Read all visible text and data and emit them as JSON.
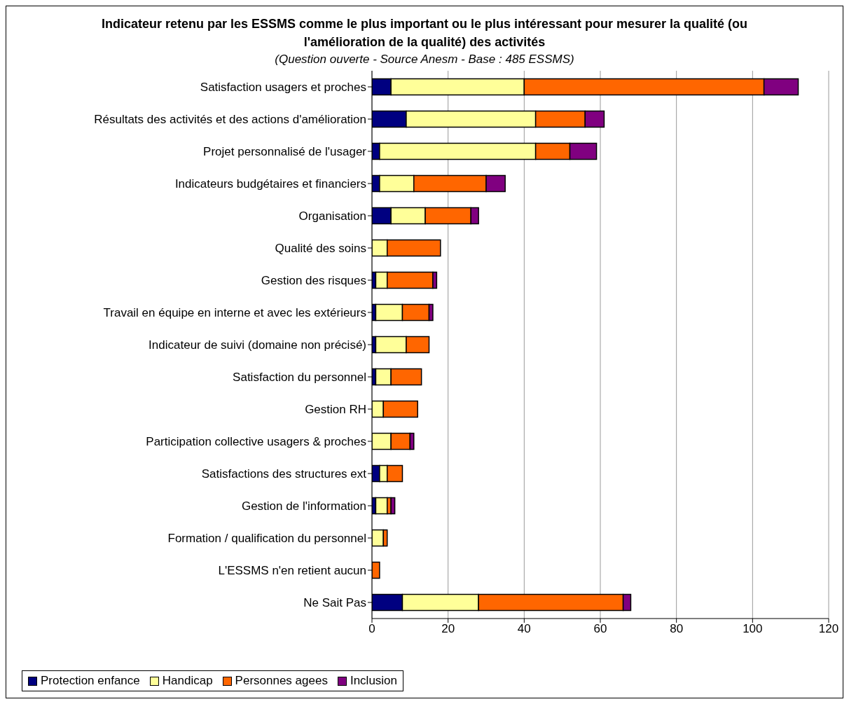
{
  "chart_data": {
    "type": "bar",
    "orientation": "horizontal",
    "stacked": true,
    "title": "Indicateur retenu par les ESSMS comme le plus important ou le plus intéressant pour mesurer la qualité (ou l'amélioration de la qualité) des activités",
    "subtitle": "(Question ouverte - Source Anesm - Base : 485 ESSMS)",
    "categories": [
      "Satisfaction usagers et proches",
      "Résultats des activités et des actions d'amélioration",
      "Projet personnalisé de l'usager",
      "Indicateurs budgétaires et financiers",
      "Organisation",
      "Qualité des soins",
      "Gestion des risques",
      "Travail en équipe en interne et avec les extérieurs",
      "Indicateur de suivi (domaine non précisé)",
      "Satisfaction du personnel",
      "Gestion RH",
      "Participation collective usagers & proches",
      "Satisfactions des structures ext",
      "Gestion de l'information",
      "Formation / qualification du personnel",
      "L'ESSMS n'en retient aucun",
      "Ne Sait Pas"
    ],
    "series": [
      {
        "name": "Protection enfance",
        "color": "#000080",
        "values": [
          5,
          9,
          2,
          2,
          5,
          0,
          1,
          1,
          1,
          1,
          0,
          0,
          2,
          1,
          0,
          0,
          8
        ]
      },
      {
        "name": "Handicap",
        "color": "#ffff99",
        "values": [
          35,
          34,
          41,
          9,
          9,
          4,
          3,
          7,
          8,
          4,
          3,
          5,
          2,
          3,
          3,
          0,
          20
        ]
      },
      {
        "name": "Personnes agees",
        "color": "#ff6600",
        "values": [
          63,
          13,
          9,
          19,
          12,
          14,
          12,
          7,
          6,
          8,
          9,
          5,
          4,
          1,
          1,
          2,
          38
        ]
      },
      {
        "name": "Inclusion",
        "color": "#800080",
        "values": [
          9,
          5,
          7,
          5,
          2,
          0,
          1,
          1,
          0,
          0,
          0,
          1,
          0,
          1,
          0,
          0,
          2
        ]
      }
    ],
    "xlim": [
      0,
      120
    ],
    "xticks": [
      0,
      20,
      40,
      60,
      80,
      100,
      120
    ],
    "grid": "x",
    "legend": "bottom left"
  }
}
